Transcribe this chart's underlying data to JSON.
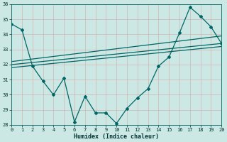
{
  "xlabel": "Humidex (Indice chaleur)",
  "bg_color": "#cce8e4",
  "grid_color": "#b8d8d4",
  "line_color": "#006666",
  "series1_x": [
    0,
    1,
    2,
    3,
    4,
    5,
    6,
    7,
    8,
    9,
    10,
    11,
    12,
    13,
    14,
    15,
    16,
    17,
    18,
    19,
    20
  ],
  "series1_y": [
    34.7,
    34.3,
    31.9,
    30.9,
    30.0,
    31.1,
    28.2,
    29.9,
    28.8,
    28.8,
    28.1,
    29.1,
    29.8,
    30.4,
    31.9,
    32.5,
    34.1,
    35.8,
    35.2,
    34.5,
    33.4
  ],
  "trend1_x": [
    0,
    20
  ],
  "trend1_y": [
    32.0,
    33.4
  ],
  "trend2_x": [
    0,
    20
  ],
  "trend2_y": [
    31.8,
    33.2
  ],
  "trend3_x": [
    0,
    20
  ],
  "trend3_y": [
    32.2,
    33.9
  ],
  "ylim_min": 28,
  "ylim_max": 36,
  "xlim_min": 0,
  "xlim_max": 20,
  "yticks": [
    28,
    29,
    30,
    31,
    32,
    33,
    34,
    35,
    36
  ],
  "xticks": [
    0,
    1,
    2,
    3,
    4,
    5,
    6,
    7,
    8,
    9,
    10,
    11,
    12,
    13,
    14,
    15,
    16,
    17,
    18,
    19,
    20
  ]
}
